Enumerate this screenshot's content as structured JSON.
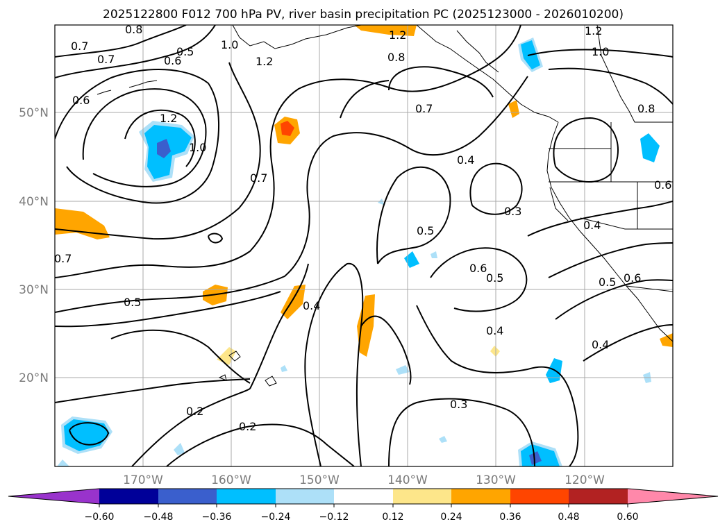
{
  "title": "2025122800 F012 700 hPa PV, river basin precipitation PC (2025123000 - 2026010200)",
  "lat_labels": [
    "50°N",
    "40°N",
    "30°N",
    "20°N"
  ],
  "lon_labels": [
    "170°W",
    "160°W",
    "150°W",
    "140°W",
    "130°W",
    "120°W"
  ],
  "colorbar": {
    "ticks": [
      "−0.60",
      "−0.48",
      "−0.36",
      "−0.24",
      "−0.12",
      "0.12",
      "0.24",
      "0.36",
      "0.48",
      "0.60"
    ],
    "colors": [
      "#9933cc",
      "#000099",
      "#3a5fcd",
      "#00bfff",
      "#ade0f8",
      "#ffffff",
      "#fde68a",
      "#ffa500",
      "#ff4500",
      "#b22222",
      "#ff88aa"
    ],
    "extend": "both"
  },
  "contour_labels": [
    "0.8",
    "0.7",
    "0.7",
    "0.5",
    "0.6",
    "1.0",
    "1.2",
    "1.2",
    "0.8",
    "1.2",
    "1.0",
    "0.6",
    "0.7",
    "1.2",
    "1.0",
    "0.7",
    "0.4",
    "0.8",
    "0.3",
    "0.5",
    "0.4",
    "0.6",
    "0.7",
    "0.6",
    "0.5",
    "0.5",
    "0.4",
    "0.5",
    "0.4",
    "0.6",
    "0.2",
    "0.3",
    "0.2",
    "0.4"
  ]
}
